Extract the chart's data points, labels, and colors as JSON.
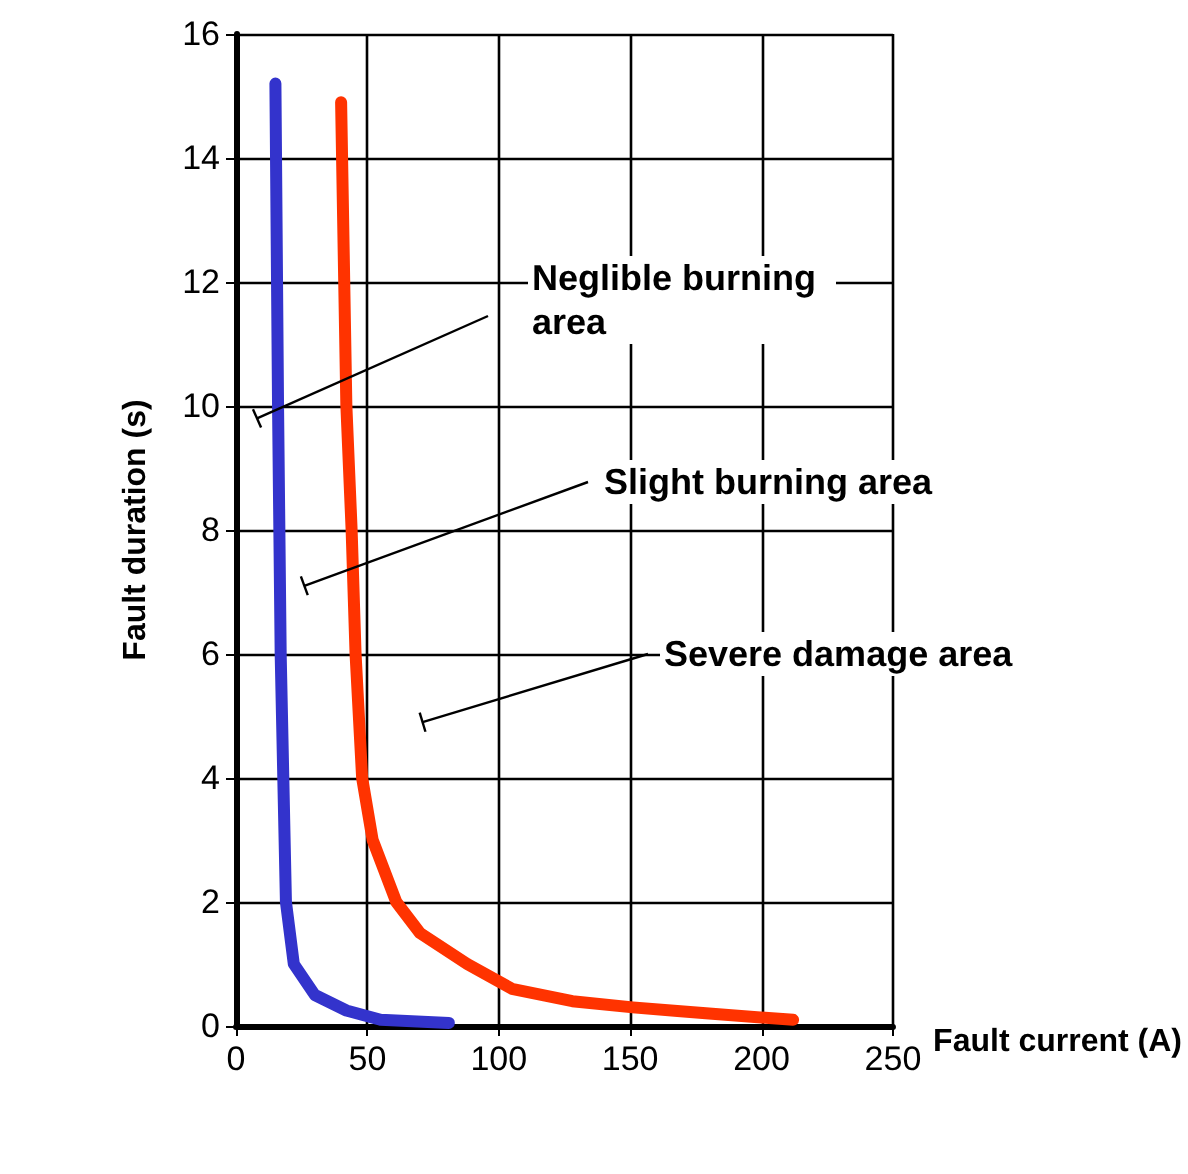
{
  "chart_data": {
    "type": "line",
    "xlabel": "Fault current (A)",
    "ylabel": "Fault duration (s)",
    "xlim": [
      0,
      250
    ],
    "xticks": [
      0,
      50,
      100,
      150,
      200,
      250
    ],
    "ylim": [
      0,
      16
    ],
    "yticks": [
      0,
      2,
      4,
      6,
      8,
      10,
      12,
      14,
      16
    ],
    "grid": true,
    "marker": "none",
    "line_style": "solid",
    "series": [
      {
        "color": "#3333cc",
        "x": [
          15,
          16,
          17,
          18,
          19,
          22,
          30,
          42,
          55,
          81
        ],
        "values": [
          15.2,
          10,
          6,
          4,
          2,
          1,
          0.5,
          0.25,
          0.1,
          0.05
        ]
      },
      {
        "color": "#ff3300",
        "x": [
          40,
          42,
          44,
          45.5,
          48,
          52,
          61,
          70,
          88,
          105,
          128,
          151,
          180,
          212
        ],
        "values": [
          14.9,
          10,
          8,
          6,
          4,
          3,
          2,
          1.5,
          1,
          0.6,
          0.4,
          0.3,
          0.2,
          0.1
        ]
      }
    ],
    "annotations": [
      "Neglible burning area",
      "Slight burning area",
      "Severe damage area"
    ]
  }
}
